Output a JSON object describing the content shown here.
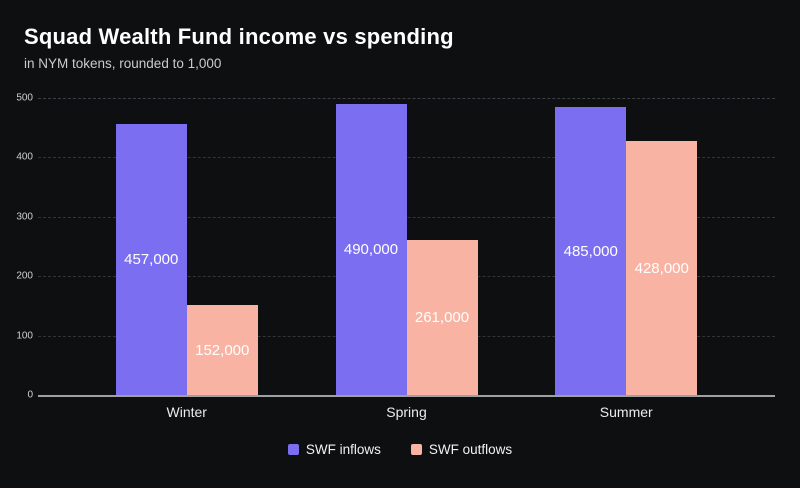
{
  "title": "Squad Wealth Fund income vs spending",
  "subtitle": "in NYM tokens, rounded to 1,000",
  "chart_data": {
    "type": "bar",
    "title": "Squad Wealth Fund income vs spending",
    "subtitle": "in NYM tokens, rounded to 1,000",
    "categories": [
      "Winter",
      "Spring",
      "Summer"
    ],
    "series": [
      {
        "name": "SWF inflows",
        "color": "#7b6ef0",
        "values": [
          457000,
          490000,
          485000
        ],
        "data_labels": [
          "457,000",
          "490,000",
          "485,000"
        ]
      },
      {
        "name": "SWF outflows",
        "color": "#f9b3a3",
        "values": [
          152000,
          261000,
          428000
        ],
        "data_labels": [
          "152,000",
          "261,000",
          "428,000"
        ]
      }
    ],
    "xlabel": "",
    "ylabel": "",
    "y_axis": {
      "min": 0,
      "max": 500000,
      "tick_step": 100000,
      "tick_labels": [
        "0",
        "100",
        "200",
        "300",
        "400",
        "500"
      ]
    },
    "grid": "horizontal-dashed",
    "legend_position": "bottom-center"
  },
  "legend": {
    "items": [
      {
        "label": "SWF inflows",
        "color": "#7b6ef0"
      },
      {
        "label": "SWF outflows",
        "color": "#f9b3a3"
      }
    ]
  },
  "colors": {
    "background": "#0e0f10",
    "inflow_bar": "#7b6ef0",
    "outflow_bar": "#f9b3a3",
    "gridline": "#333338",
    "axis_line": "#a0a0a0",
    "title_text": "#ffffff",
    "subtitle_text": "#cbcbcb",
    "tick_text": "#d0d0d0",
    "category_text": "#ececec",
    "value_label_text": "#ffffff",
    "legend_text": "#f2f2f2"
  }
}
